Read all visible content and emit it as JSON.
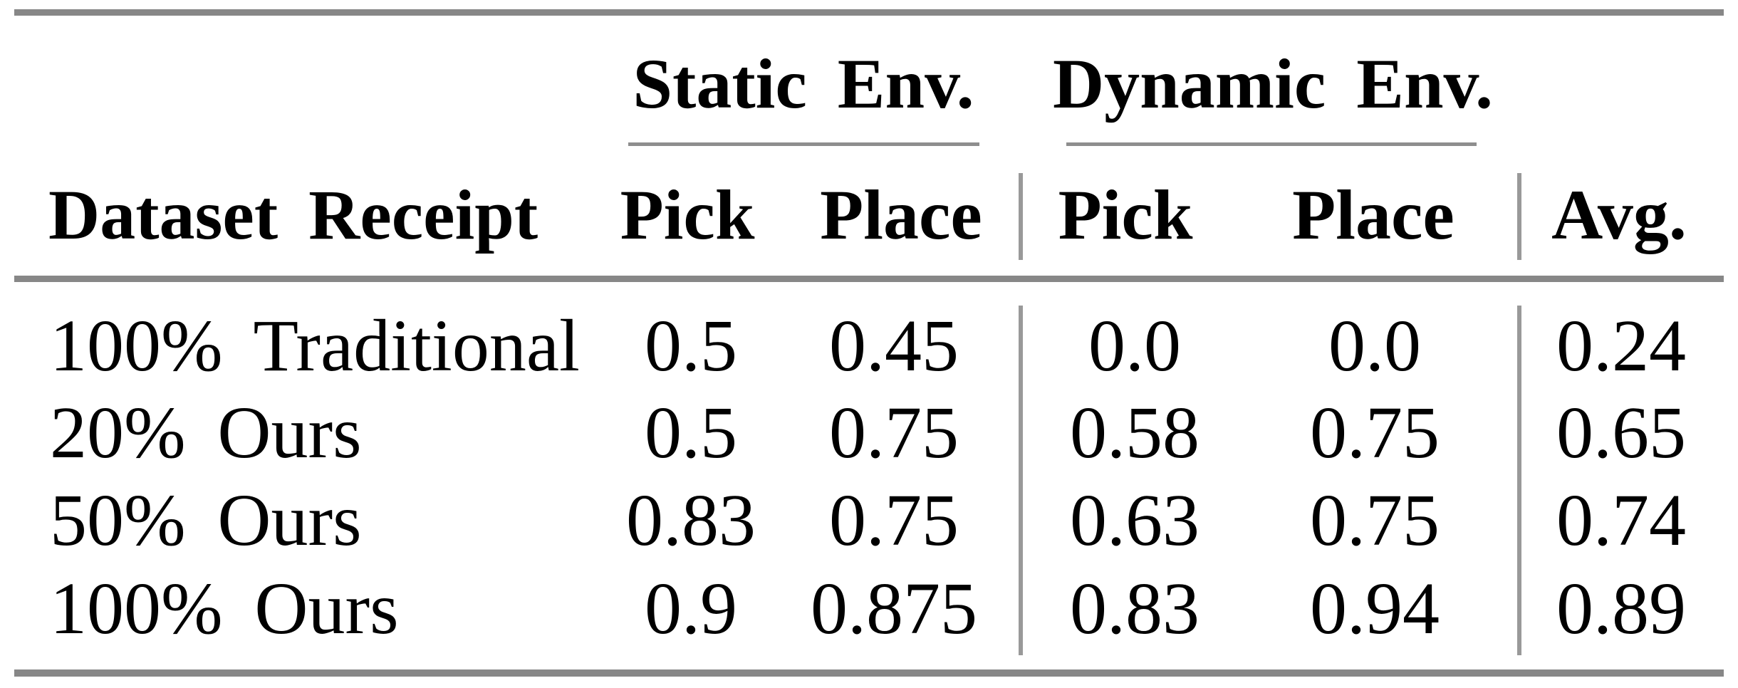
{
  "table": {
    "rule_color": "#878787",
    "text_color": "#000000",
    "group_headers": {
      "static": "Static Env.",
      "dynamic": "Dynamic Env."
    },
    "columns": {
      "dataset": "Dataset Receipt",
      "static_pick": "Pick",
      "static_place": "Place",
      "dynamic_pick": "Pick",
      "dynamic_place": "Place",
      "avg": "Avg."
    },
    "rows": [
      {
        "label": "100% Traditional",
        "static_pick": "0.5",
        "static_place": "0.45",
        "dynamic_pick": "0.0",
        "dynamic_place": "0.0",
        "avg": "0.24"
      },
      {
        "label": "20% Ours",
        "static_pick": "0.5",
        "static_place": "0.75",
        "dynamic_pick": "0.58",
        "dynamic_place": "0.75",
        "avg": "0.65"
      },
      {
        "label": "50% Ours",
        "static_pick": "0.83",
        "static_place": "0.75",
        "dynamic_pick": "0.63",
        "dynamic_place": "0.75",
        "avg": "0.74"
      },
      {
        "label": "100% Ours",
        "static_pick": "0.9",
        "static_place": "0.875",
        "dynamic_pick": "0.83",
        "dynamic_place": "0.94",
        "avg": "0.89"
      }
    ]
  }
}
